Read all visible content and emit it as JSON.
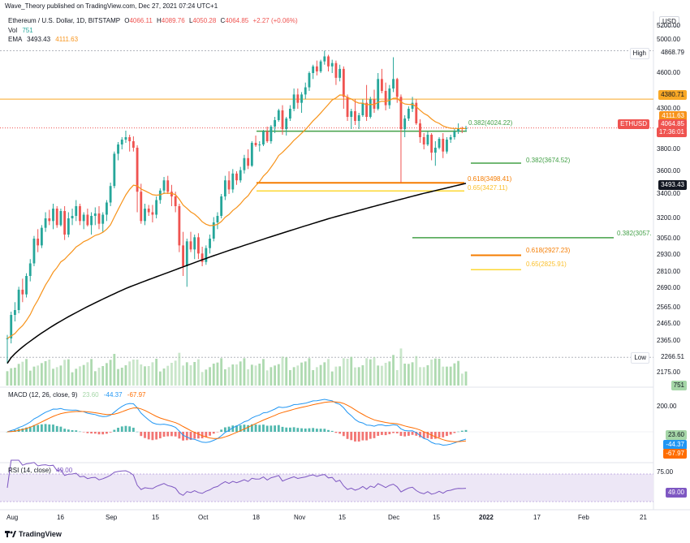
{
  "header": {
    "publisher": "Wave_Theory published on TradingView.com, Dec 27, 2021 07:24 UTC+1",
    "symbol": "Ethereum / U.S. Dollar, 1D, BITSTAMP",
    "o_label": "O",
    "o": "4066.11",
    "h_label": "H",
    "h": "4089.76",
    "l_label": "L",
    "l": "4050.28",
    "c_label": "C",
    "c": "4064.85",
    "change": "+2.27 (+0.06%)",
    "vol_label": "Vol",
    "vol": "751",
    "ema_label": "EMA",
    "ema1": "3493.43",
    "ema2": "4111.63"
  },
  "currency": "USD",
  "footer": {
    "brand": "TradingView"
  },
  "colors": {
    "up": "#26a69a",
    "down": "#ef5350",
    "ema_fast": "#f7931a",
    "ema_slow": "#000000",
    "fib_618": "#f57c00",
    "fib_65": "#fdd835",
    "fib_382": "#43a047",
    "resistance": "#f9a825",
    "macd": "#2196f3",
    "signal": "#ff6d00",
    "rsi": "#7e57c2",
    "rsi_bg": "#ede7f6"
  },
  "price_axis": [
    "5200.00",
    "5000.00",
    "4600.00",
    "4300.00",
    "3800.00",
    "3600.00",
    "3400.00",
    "3200.00",
    "3050.00",
    "2930.00",
    "2810.00",
    "2690.00",
    "2565.00",
    "2465.00",
    "2365.00",
    "2175.00"
  ],
  "price_tags": {
    "high_label": "High",
    "high": "4868.79",
    "resistance": "4380.71",
    "ema_fast": "4111.63",
    "ethusd_label": "ETHUSD",
    "last": "4064.85",
    "countdown": "17:36:01",
    "ema_slow": "3493.43",
    "low_label": "Low",
    "low": "2266.51",
    "vol": "751"
  },
  "fib_labels": {
    "f382a": "0.382(4024.22)",
    "f382b": "0.382(3674.52)",
    "f618a": "0.618(3498.41)",
    "f65a": "0.65(3427.11)",
    "f382c": "0.382(3057.",
    "f618b": "0.618(2927.23)",
    "f65b": "0.65(2825.91)"
  },
  "macd": {
    "label": "MACD (12, 26, close, 9)",
    "hist": "23.60",
    "macd": "-44.37",
    "signal": "-67.97",
    "axis": [
      "200.00"
    ]
  },
  "rsi": {
    "label": "RSI (14, close)",
    "value": "49.00",
    "axis": [
      "75.00"
    ]
  },
  "time_axis": [
    "Aug",
    "16",
    "Sep",
    "15",
    "Oct",
    "18",
    "Nov",
    "15",
    "Dec",
    "15",
    "2022",
    "17",
    "Feb",
    "21"
  ],
  "chart_data": {
    "type": "candlestick",
    "symbol": "Ethereum / U.S. Dollar, 1D, BITSTAMP",
    "ohlc": [
      [
        2380,
        2400,
        2230,
        2380
      ],
      [
        2380,
        2540,
        2350,
        2520
      ],
      [
        2520,
        2600,
        2480,
        2550
      ],
      [
        2550,
        2700,
        2530,
        2680
      ],
      [
        2680,
        2760,
        2600,
        2650
      ],
      [
        2650,
        2800,
        2630,
        2780
      ],
      [
        2780,
        2900,
        2740,
        2870
      ],
      [
        2870,
        3070,
        2850,
        3050
      ],
      [
        3050,
        3120,
        2950,
        3000
      ],
      [
        3000,
        3150,
        2980,
        3130
      ],
      [
        3130,
        3250,
        3100,
        3200
      ],
      [
        3200,
        3270,
        3150,
        3180
      ],
      [
        3180,
        3320,
        3120,
        3280
      ],
      [
        3280,
        3300,
        3130,
        3150
      ],
      [
        3150,
        3280,
        3140,
        3260
      ],
      [
        3260,
        3300,
        3040,
        3080
      ],
      [
        3080,
        3250,
        3060,
        3200
      ],
      [
        3200,
        3280,
        3150,
        3220
      ],
      [
        3220,
        3350,
        3180,
        3300
      ],
      [
        3300,
        3320,
        3150,
        3180
      ],
      [
        3180,
        3250,
        3120,
        3230
      ],
      [
        3230,
        3280,
        3140,
        3150
      ],
      [
        3150,
        3250,
        3080,
        3220
      ],
      [
        3220,
        3290,
        3150,
        3240
      ],
      [
        3240,
        3300,
        3120,
        3160
      ],
      [
        3160,
        3250,
        3100,
        3230
      ],
      [
        3230,
        3350,
        3180,
        3330
      ],
      [
        3330,
        3500,
        3300,
        3470
      ],
      [
        3470,
        3780,
        3450,
        3760
      ],
      [
        3760,
        3890,
        3700,
        3860
      ],
      [
        3860,
        3950,
        3800,
        3920
      ],
      [
        3920,
        4030,
        3880,
        3950
      ],
      [
        3950,
        3980,
        3780,
        3900
      ],
      [
        3900,
        3960,
        3780,
        3820
      ],
      [
        3820,
        3850,
        3250,
        3420
      ],
      [
        3420,
        3490,
        3160,
        3180
      ],
      [
        3180,
        3320,
        3150,
        3280
      ],
      [
        3280,
        3310,
        3220,
        3250
      ],
      [
        3250,
        3310,
        3170,
        3230
      ],
      [
        3230,
        3380,
        3200,
        3350
      ],
      [
        3350,
        3450,
        3320,
        3430
      ],
      [
        3430,
        3550,
        3400,
        3520
      ],
      [
        3520,
        3560,
        3400,
        3420
      ],
      [
        3420,
        3480,
        3300,
        3380
      ],
      [
        3380,
        3420,
        3250,
        3300
      ],
      [
        3300,
        3320,
        2950,
        3000
      ],
      [
        3000,
        3100,
        2780,
        2850
      ],
      [
        2850,
        3050,
        2700,
        3030
      ],
      [
        3030,
        3100,
        2950,
        2970
      ],
      [
        2970,
        3080,
        2900,
        3060
      ],
      [
        3060,
        3090,
        2900,
        2940
      ],
      [
        2940,
        2990,
        2850,
        2880
      ],
      [
        2880,
        3000,
        2860,
        2980
      ],
      [
        2980,
        3080,
        2940,
        3050
      ],
      [
        3050,
        3210,
        3030,
        3170
      ],
      [
        3170,
        3250,
        3120,
        3220
      ],
      [
        3220,
        3400,
        3200,
        3380
      ],
      [
        3380,
        3560,
        3350,
        3520
      ],
      [
        3520,
        3600,
        3400,
        3440
      ],
      [
        3440,
        3620,
        3410,
        3580
      ],
      [
        3580,
        3600,
        3480,
        3520
      ],
      [
        3520,
        3640,
        3500,
        3610
      ],
      [
        3610,
        3750,
        3580,
        3720
      ],
      [
        3720,
        3800,
        3620,
        3650
      ],
      [
        3650,
        3900,
        3640,
        3880
      ],
      [
        3880,
        3970,
        3830,
        3850
      ],
      [
        3850,
        3900,
        3780,
        3860
      ],
      [
        3860,
        4040,
        3840,
        4020
      ],
      [
        4020,
        4080,
        3880,
        3900
      ],
      [
        3900,
        4100,
        3870,
        4080
      ],
      [
        4080,
        4200,
        4000,
        4160
      ],
      [
        4160,
        4300,
        4140,
        4280
      ],
      [
        4280,
        4330,
        3980,
        4050
      ],
      [
        4050,
        4200,
        3970,
        4180
      ],
      [
        4180,
        4330,
        4150,
        4300
      ],
      [
        4300,
        4470,
        4270,
        4420
      ],
      [
        4420,
        4470,
        4300,
        4350
      ],
      [
        4350,
        4440,
        4250,
        4420
      ],
      [
        4420,
        4520,
        4380,
        4480
      ],
      [
        4480,
        4620,
        4450,
        4600
      ],
      [
        4600,
        4700,
        4550,
        4680
      ],
      [
        4680,
        4750,
        4580,
        4620
      ],
      [
        4620,
        4760,
        4600,
        4740
      ],
      [
        4740,
        4869,
        4700,
        4800
      ],
      [
        4800,
        4820,
        4620,
        4680
      ],
      [
        4680,
        4760,
        4600,
        4720
      ],
      [
        4720,
        4750,
        4500,
        4560
      ],
      [
        4560,
        4700,
        4530,
        4650
      ],
      [
        4650,
        4680,
        4300,
        4400
      ],
      [
        4400,
        4420,
        4150,
        4200
      ],
      [
        4200,
        4300,
        4050,
        4270
      ],
      [
        4270,
        4380,
        4100,
        4150
      ],
      [
        4150,
        4250,
        4050,
        4220
      ],
      [
        4220,
        4380,
        4200,
        4350
      ],
      [
        4350,
        4500,
        4150,
        4200
      ],
      [
        4200,
        4400,
        4180,
        4380
      ],
      [
        4380,
        4460,
        4250,
        4300
      ],
      [
        4300,
        4600,
        4280,
        4550
      ],
      [
        4550,
        4650,
        4430,
        4450
      ],
      [
        4450,
        4520,
        4280,
        4330
      ],
      [
        4330,
        4500,
        4300,
        4470
      ],
      [
        4470,
        4790,
        4440,
        4550
      ],
      [
        4550,
        4560,
        4350,
        4400
      ],
      [
        4400,
        4420,
        3500,
        4050
      ],
      [
        4050,
        4220,
        3950,
        4180
      ],
      [
        4180,
        4320,
        4150,
        4300
      ],
      [
        4300,
        4400,
        4260,
        4350
      ],
      [
        4350,
        4380,
        4100,
        4120
      ],
      [
        4120,
        4170,
        3880,
        3950
      ],
      [
        3950,
        4000,
        3800,
        3860
      ],
      [
        3860,
        4020,
        3840,
        3980
      ],
      [
        3980,
        4000,
        3700,
        3770
      ],
      [
        3770,
        3900,
        3650,
        3820
      ],
      [
        3820,
        3950,
        3800,
        3930
      ],
      [
        3930,
        4000,
        3720,
        3780
      ],
      [
        3780,
        3950,
        3760,
        3920
      ],
      [
        3920,
        3980,
        3880,
        3950
      ],
      [
        3950,
        4050,
        3920,
        4020
      ],
      [
        4020,
        4120,
        3990,
        4060
      ],
      [
        4060,
        4080,
        4000,
        4050
      ],
      [
        4050,
        4090,
        4020,
        4064
      ]
    ],
    "ema_fast_last": 4111.63,
    "ema_slow_last": 3493.43,
    "high": 4868.79,
    "low": 2266.51,
    "horizontal_levels": [
      4380.71,
      4024.22,
      3674.52,
      3498.41,
      3427.11,
      3057,
      2927.23,
      2825.91
    ],
    "ylim": [
      2100,
      5250
    ],
    "macd_last": {
      "histogram": 23.6,
      "macd": -44.37,
      "signal": -67.97
    },
    "rsi_last": 49.0
  }
}
